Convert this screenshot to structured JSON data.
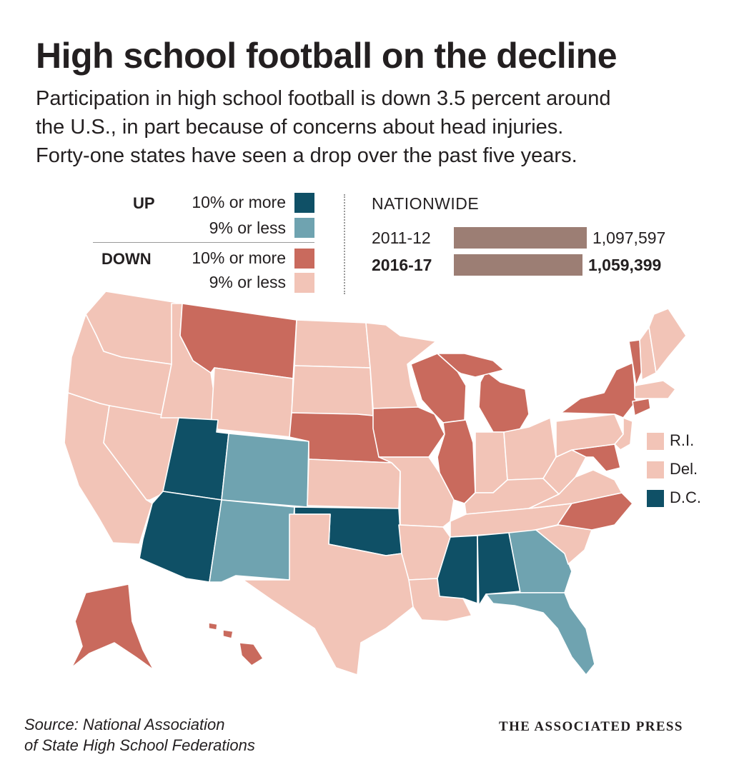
{
  "title": "High school football on the decline",
  "subtitle_lines": [
    "Participation in high school football is down 3.5 percent around",
    "the U.S., in part because of concerns about head injuries.",
    "Forty-one states have seen a drop over the past five years."
  ],
  "legend": {
    "up_label": "UP",
    "down_label": "DOWN",
    "items": [
      {
        "group": "UP",
        "label": "10% or more",
        "color": "#0f5066"
      },
      {
        "group": "UP",
        "label": "9% or less",
        "color": "#6fa3b0"
      },
      {
        "group": "DOWN",
        "label": "10% or more",
        "color": "#c96a5d"
      },
      {
        "group": "DOWN",
        "label": "9% or less",
        "color": "#f2c4b7"
      }
    ]
  },
  "nationwide": {
    "title": "NATIONWIDE",
    "rows": [
      {
        "year": "2011-12",
        "value": 1097597,
        "value_label": "1,097,597",
        "bold": false
      },
      {
        "year": "2016-17",
        "value": 1059399,
        "value_label": "1,059,399",
        "bold": true
      }
    ],
    "bar_color": "#9c7e74"
  },
  "small_states": [
    {
      "label": "R.I.",
      "category": "down-9-or-less"
    },
    {
      "label": "Del.",
      "category": "down-9-or-less"
    },
    {
      "label": "D.C.",
      "category": "up-10-or-more"
    }
  ],
  "map": {
    "categories": {
      "up-10-or-more": "#0f5066",
      "up-9-or-less": "#6fa3b0",
      "down-10-or-more": "#c96a5d",
      "down-9-or-less": "#f2c4b7"
    },
    "states": [
      {
        "name": "Washington",
        "category": "down-9-or-less"
      },
      {
        "name": "Oregon",
        "category": "down-9-or-less"
      },
      {
        "name": "California",
        "category": "down-9-or-less"
      },
      {
        "name": "Nevada",
        "category": "down-9-or-less"
      },
      {
        "name": "Idaho",
        "category": "down-9-or-less"
      },
      {
        "name": "Montana",
        "category": "down-10-or-more"
      },
      {
        "name": "Wyoming",
        "category": "down-9-or-less"
      },
      {
        "name": "Utah",
        "category": "up-10-or-more"
      },
      {
        "name": "Colorado",
        "category": "up-9-or-less"
      },
      {
        "name": "Arizona",
        "category": "up-10-or-more"
      },
      {
        "name": "New Mexico",
        "category": "up-9-or-less"
      },
      {
        "name": "North Dakota",
        "category": "down-9-or-less"
      },
      {
        "name": "South Dakota",
        "category": "down-9-or-less"
      },
      {
        "name": "Nebraska",
        "category": "down-10-or-more"
      },
      {
        "name": "Kansas",
        "category": "down-9-or-less"
      },
      {
        "name": "Oklahoma",
        "category": "up-10-or-more"
      },
      {
        "name": "Texas",
        "category": "down-9-or-less"
      },
      {
        "name": "Minnesota",
        "category": "down-9-or-less"
      },
      {
        "name": "Iowa",
        "category": "down-10-or-more"
      },
      {
        "name": "Missouri",
        "category": "down-9-or-less"
      },
      {
        "name": "Arkansas",
        "category": "down-9-or-less"
      },
      {
        "name": "Louisiana",
        "category": "down-9-or-less"
      },
      {
        "name": "Wisconsin",
        "category": "down-10-or-more"
      },
      {
        "name": "Illinois",
        "category": "down-10-or-more"
      },
      {
        "name": "Michigan",
        "category": "down-10-or-more"
      },
      {
        "name": "Indiana",
        "category": "down-9-or-less"
      },
      {
        "name": "Ohio",
        "category": "down-9-or-less"
      },
      {
        "name": "Kentucky",
        "category": "down-9-or-less"
      },
      {
        "name": "Tennessee",
        "category": "down-9-or-less"
      },
      {
        "name": "Mississippi",
        "category": "up-10-or-more"
      },
      {
        "name": "Alabama",
        "category": "up-10-or-more"
      },
      {
        "name": "Georgia",
        "category": "up-9-or-less"
      },
      {
        "name": "Florida",
        "category": "up-9-or-less"
      },
      {
        "name": "South Carolina",
        "category": "down-9-or-less"
      },
      {
        "name": "North Carolina",
        "category": "down-10-or-more"
      },
      {
        "name": "Virginia",
        "category": "down-9-or-less"
      },
      {
        "name": "West Virginia",
        "category": "down-9-or-less"
      },
      {
        "name": "Maryland",
        "category": "down-10-or-more"
      },
      {
        "name": "Pennsylvania",
        "category": "down-9-or-less"
      },
      {
        "name": "New York",
        "category": "down-10-or-more"
      },
      {
        "name": "New Jersey",
        "category": "down-9-or-less"
      },
      {
        "name": "Connecticut",
        "category": "down-10-or-more"
      },
      {
        "name": "Massachusetts",
        "category": "down-9-or-less"
      },
      {
        "name": "Vermont",
        "category": "down-10-or-more"
      },
      {
        "name": "New Hampshire",
        "category": "down-9-or-less"
      },
      {
        "name": "Maine",
        "category": "down-9-or-less"
      },
      {
        "name": "Alaska",
        "category": "down-10-or-more"
      },
      {
        "name": "Hawaii",
        "category": "down-10-or-more"
      }
    ]
  },
  "source_lines": [
    "Source: National Association",
    "of State High School Federations"
  ],
  "credit": "THE ASSOCIATED PRESS"
}
